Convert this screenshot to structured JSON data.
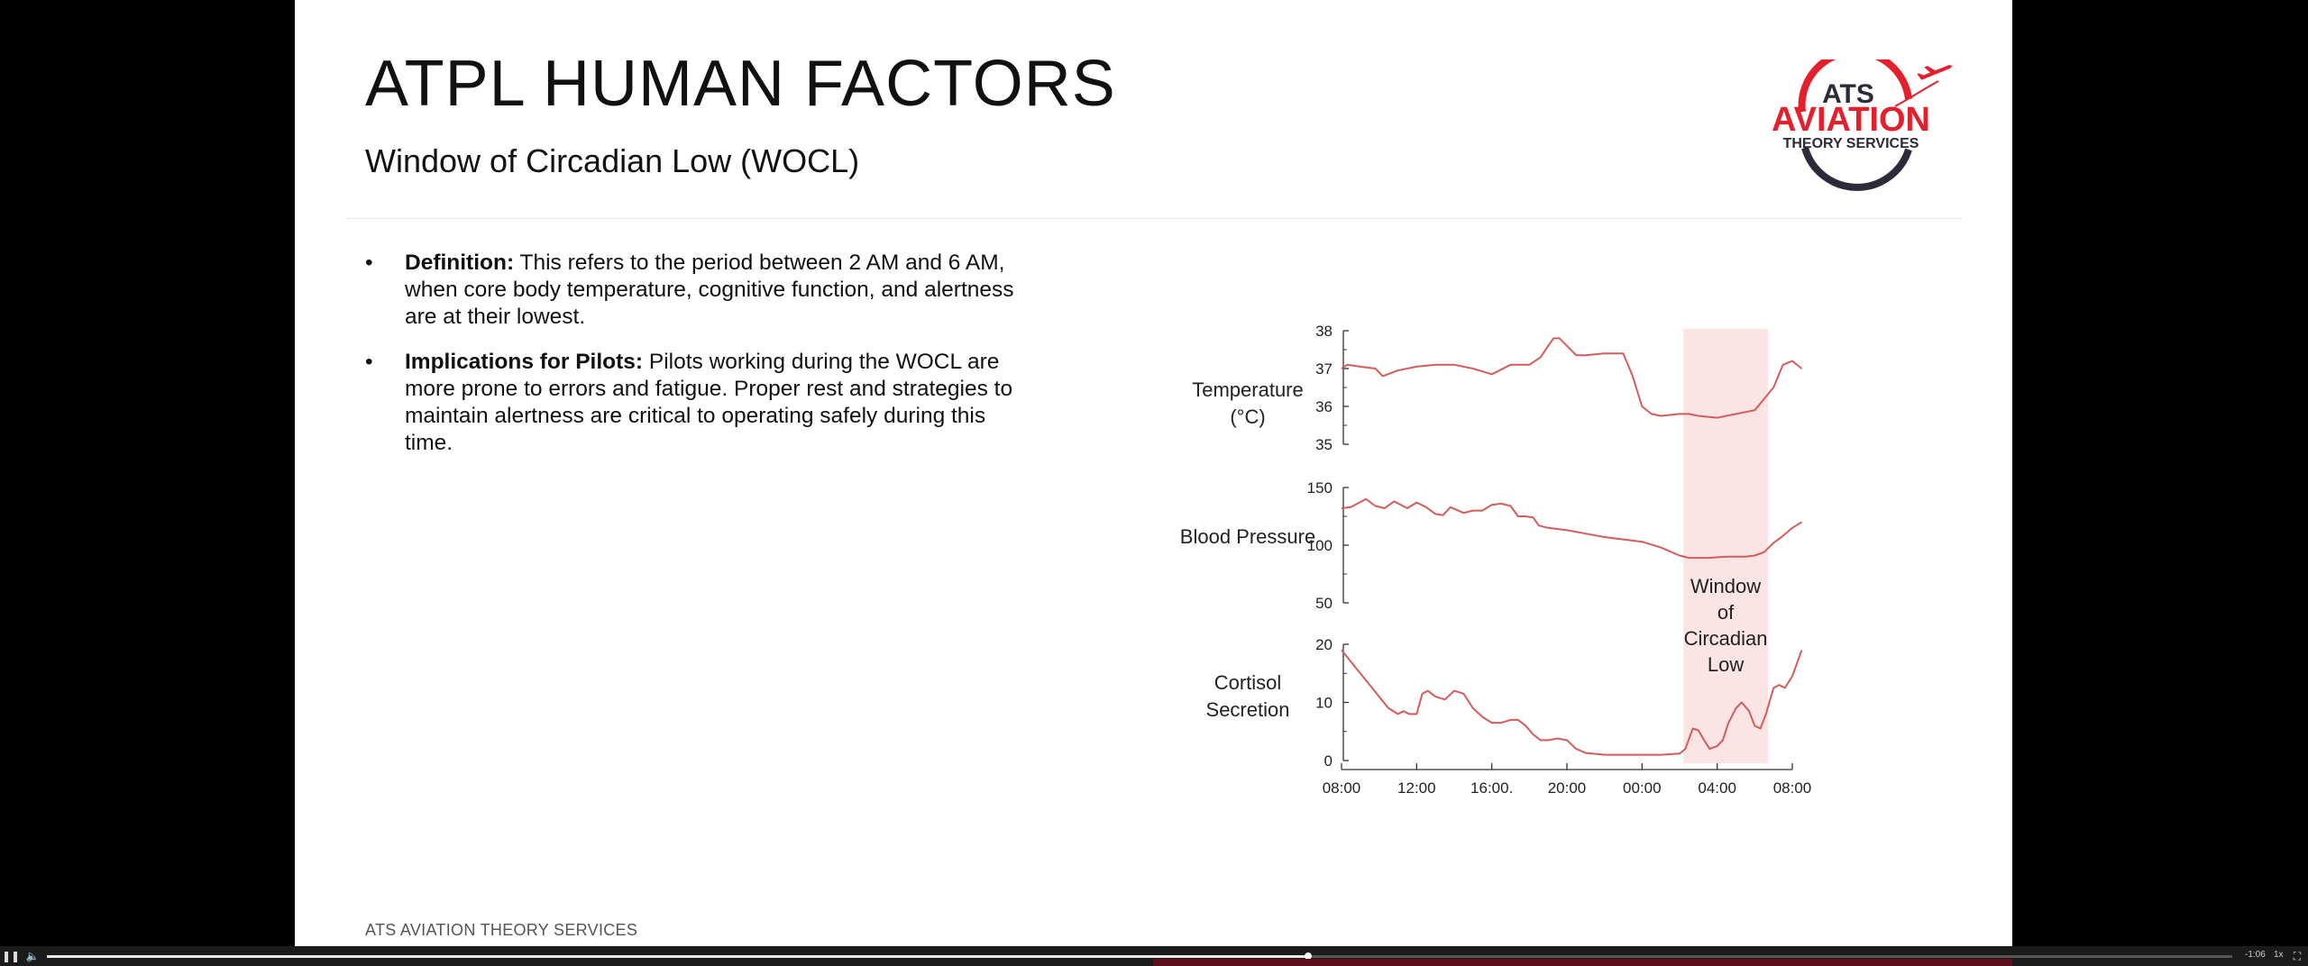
{
  "slide": {
    "title": "ATPL HUMAN FACTORS",
    "subtitle": "Window of Circadian Low (WOCL)",
    "footer": "ATS AVIATION THEORY SERVICES",
    "bullet_char": "•",
    "bullets": [
      {
        "heading": "Definition:",
        "text": " This refers to the period between 2 AM and 6 AM, when core body temperature, cognitive function, and alertness are at their lowest."
      },
      {
        "heading": "Implications for Pilots:",
        "text": " Pilots working during the WOCL are more prone to errors and fatigue. Proper rest and strategies to maintain alertness are critical to operating safely during this time."
      }
    ],
    "logo": {
      "line1": "ATS",
      "line2": "AVIATION",
      "line3": "THEORY SERVICES",
      "icon": "airplane-icon",
      "red": "#e3202b",
      "dark": "#2b2b3a"
    }
  },
  "chart_data": {
    "type": "line",
    "x_ticks": [
      "08:00",
      "12:00",
      "16:00.",
      "20:00",
      "00:00",
      "04:00",
      "08:00"
    ],
    "x_range_hours": [
      8,
      32
    ],
    "line_color": "#d35c5c",
    "highlight": {
      "label_lines": [
        "Window",
        "of",
        "Circadian",
        "Low"
      ],
      "x_range_hours": [
        26.2,
        30.7
      ],
      "color": "#fbe4e4"
    },
    "panels": [
      {
        "label_lines": [
          "Temperature",
          "(°C)"
        ],
        "y_ticks": [
          "38",
          "37",
          "36",
          "35"
        ],
        "ylim": [
          35,
          38
        ],
        "series": {
          "x": [
            8,
            8.3,
            9,
            9.8,
            10.2,
            11,
            12,
            13,
            14,
            15,
            16,
            17,
            18,
            18.6,
            19,
            19.3,
            19.6,
            20,
            20.5,
            21,
            22,
            23,
            23.5,
            24,
            24.5,
            25,
            26,
            26.5,
            27,
            28,
            29,
            30,
            30.5,
            31,
            31.5,
            32,
            32.5
          ],
          "y": [
            37.0,
            37.1,
            37.05,
            37.0,
            36.8,
            36.95,
            37.05,
            37.1,
            37.1,
            37.0,
            36.85,
            37.1,
            37.1,
            37.3,
            37.6,
            37.8,
            37.8,
            37.6,
            37.35,
            37.35,
            37.4,
            37.4,
            36.8,
            36.0,
            35.8,
            35.75,
            35.8,
            35.8,
            35.75,
            35.7,
            35.8,
            35.9,
            36.2,
            36.5,
            37.1,
            37.2,
            37.0
          ]
        }
      },
      {
        "label_lines": [
          "Blood Pressure"
        ],
        "y_ticks": [
          "150",
          "100",
          "50"
        ],
        "ylim": [
          50,
          150
        ],
        "series": {
          "x": [
            8,
            8.5,
            9.3,
            9.8,
            10.3,
            10.8,
            11.5,
            12,
            12.5,
            13,
            13.4,
            13.8,
            14.5,
            15,
            15.5,
            16,
            16.5,
            17,
            17.4,
            17.8,
            18.2,
            18.5,
            19,
            20,
            21,
            22,
            23,
            24,
            25,
            26,
            26.5,
            27.5,
            28.5,
            29.5,
            30,
            30.5,
            31,
            31.5,
            32,
            32.5
          ],
          "y": [
            132,
            133,
            140,
            134,
            132,
            138,
            132,
            137,
            133,
            127,
            126,
            133,
            128,
            130,
            130,
            135,
            136,
            134,
            125,
            125,
            124,
            117,
            115,
            113,
            110,
            107,
            105,
            103,
            98,
            91,
            89,
            89,
            90,
            90,
            91,
            94,
            102,
            108,
            115,
            120
          ]
        }
      },
      {
        "label_lines": [
          "Cortisol",
          "Secretion"
        ],
        "y_ticks": [
          "20",
          "10",
          "0"
        ],
        "ylim": [
          0,
          20
        ],
        "series": {
          "x": [
            8,
            8.5,
            9,
            9.5,
            10,
            10.5,
            11,
            11.3,
            11.6,
            12,
            12.3,
            12.6,
            13,
            13.5,
            14,
            14.5,
            15,
            15.5,
            16,
            16.5,
            17,
            17.4,
            17.8,
            18.2,
            18.6,
            19,
            19.5,
            20,
            20.5,
            21,
            22,
            23,
            24,
            25,
            26,
            26.3,
            26.7,
            27,
            27.3,
            27.6,
            28,
            28.3,
            28.6,
            29,
            29.3,
            29.7,
            30,
            30.3,
            30.6,
            31,
            31.3,
            31.6,
            32,
            32.5
          ],
          "y": [
            19,
            17,
            15,
            13,
            11,
            9,
            8,
            8.5,
            8,
            8,
            11.5,
            12,
            11,
            10.5,
            12,
            11.5,
            9,
            7.5,
            6.5,
            6.5,
            7,
            7,
            6,
            4.5,
            3.5,
            3.5,
            3.8,
            3.5,
            2,
            1.3,
            1,
            1,
            1,
            1,
            1.2,
            2,
            5.5,
            5.2,
            3.5,
            2,
            2.5,
            3.5,
            6.5,
            9,
            10,
            8.5,
            6,
            5.5,
            8,
            12.5,
            13,
            12.5,
            14.5,
            19
          ]
        }
      }
    ]
  },
  "player": {
    "time": "-1:06",
    "speed": "1x",
    "progress": 0.577
  }
}
